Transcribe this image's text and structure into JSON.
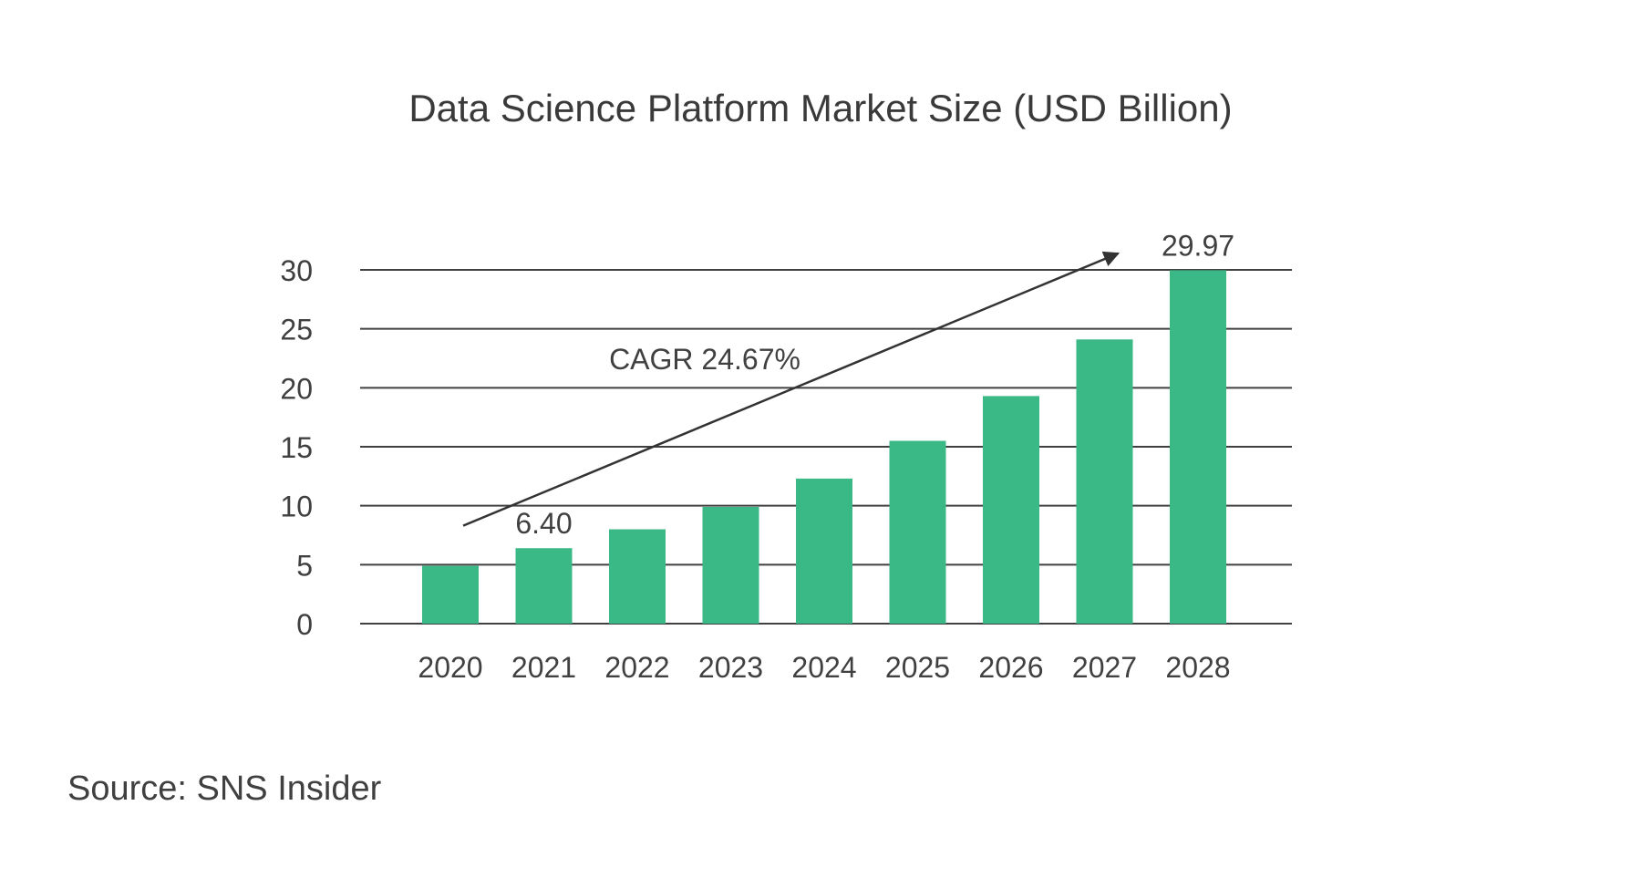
{
  "chart_data": {
    "type": "bar",
    "title": "Data Science Platform Market Size (USD Billion)",
    "categories": [
      "2020",
      "2021",
      "2022",
      "2023",
      "2024",
      "2025",
      "2026",
      "2027",
      "2028"
    ],
    "values": [
      4.9,
      6.4,
      8.0,
      9.9,
      12.3,
      15.5,
      19.3,
      24.1,
      29.97
    ],
    "value_labels": [
      {
        "category": "2021",
        "text": "6.40"
      },
      {
        "category": "2028",
        "text": "29.97"
      }
    ],
    "ylim": [
      0,
      30
    ],
    "yticks": [
      "0",
      "5",
      "10",
      "15",
      "20",
      "25",
      "30"
    ],
    "grid": true,
    "bar_color": "#3ab886",
    "annotation": {
      "text": "CAGR 24.67%",
      "arrow_from": {
        "category": "2020",
        "value": 8.3
      },
      "arrow_to": {
        "category": "2027",
        "value": 31.4
      }
    },
    "source": "Source: SNS Insider"
  }
}
